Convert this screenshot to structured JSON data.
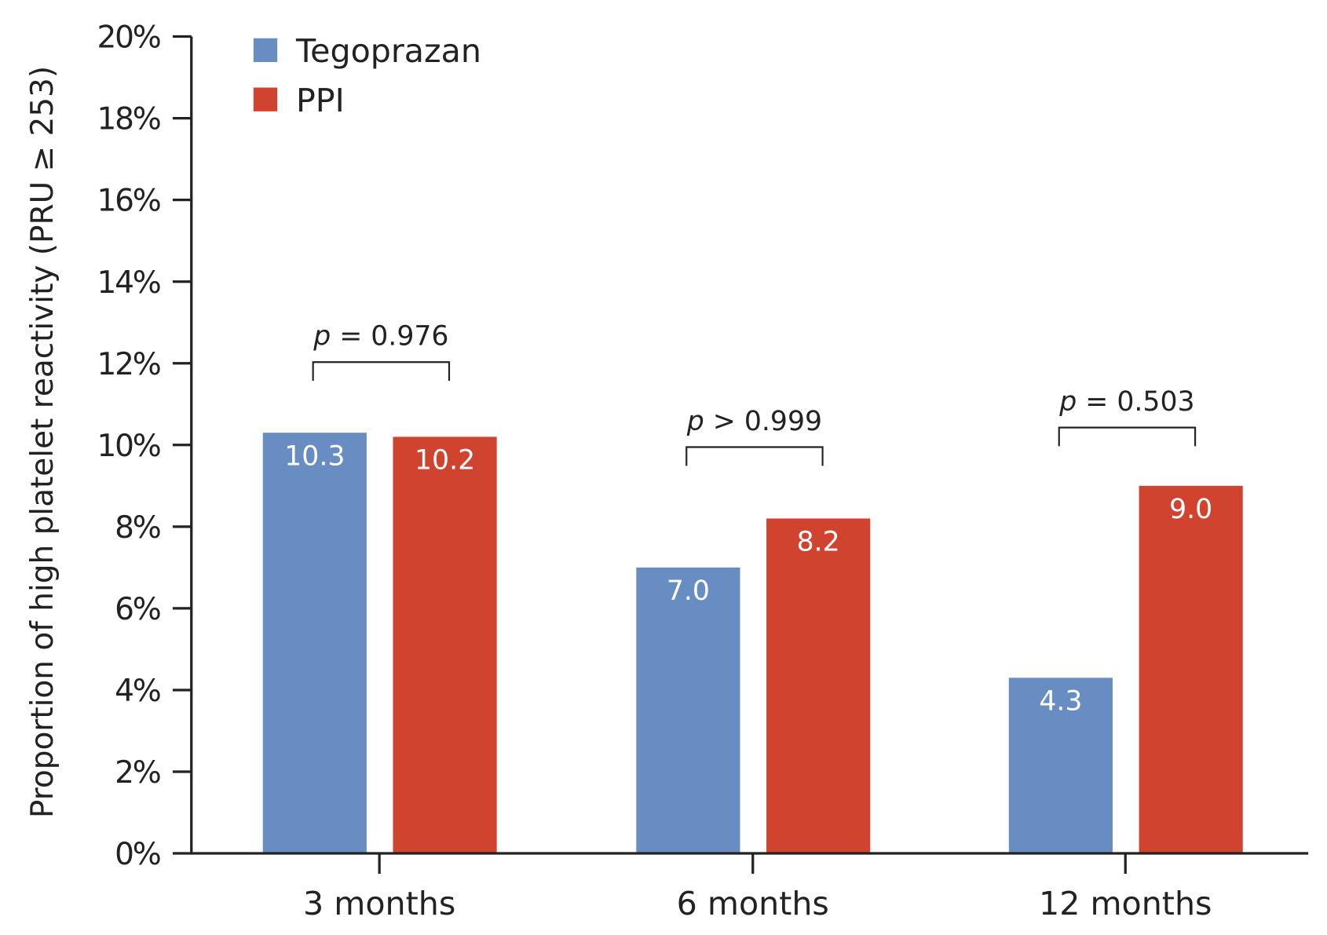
{
  "chart_data": {
    "type": "bar",
    "title": "",
    "xlabel": "",
    "ylabel": "Proportion of high platelet reactivity (PRU ≥ 253)",
    "ylim": [
      0,
      20
    ],
    "yticks": [
      "0%",
      "2%",
      "4%",
      "6%",
      "8%",
      "10%",
      "12%",
      "14%",
      "16%",
      "18%",
      "20%"
    ],
    "categories": [
      "3 months",
      "6 months",
      "12 months"
    ],
    "series": [
      {
        "name": "Tegoprazan",
        "color": "#678dc3",
        "values": [
          10.3,
          7.0,
          4.3
        ],
        "labels": [
          "10.3",
          "7.0",
          "4.3"
        ]
      },
      {
        "name": "PPI",
        "color": "#d0432f",
        "values": [
          10.2,
          8.2,
          9.0
        ],
        "labels": [
          "10.2",
          "8.2",
          "9.0"
        ]
      }
    ],
    "annotations": [
      {
        "italic": "p",
        "text": " = 0.976"
      },
      {
        "italic": "p",
        "text": " > 0.999"
      },
      {
        "italic": "p",
        "text": " = 0.503"
      }
    ],
    "legend_position": "top-left",
    "grid": false
  }
}
